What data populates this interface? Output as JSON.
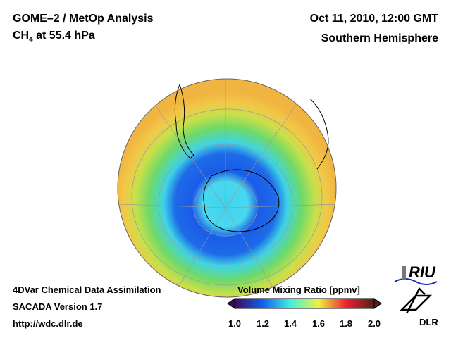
{
  "header": {
    "title": "GOME–2 / MetOp Analysis",
    "species": "CH",
    "species_sub": "4",
    "level": " at 55.4 hPa",
    "date": "Oct 11, 2010, 12:00 GMT",
    "region": "Southern Hemisphere"
  },
  "footer": {
    "line1": "4DVar Chemical Data Assimilation",
    "line2": "SACADA Version 1.7",
    "line3": "http://wdc.dlr.de"
  },
  "colorbar": {
    "title": "Volume Mixing Ratio [ppmv]",
    "ticks": [
      "1.0",
      "1.2",
      "1.4",
      "1.6",
      "1.8",
      "2.0"
    ],
    "min": 1.0,
    "max": 2.0
  },
  "logos": {
    "riu": "RIU",
    "dlr": "DLR"
  }
}
